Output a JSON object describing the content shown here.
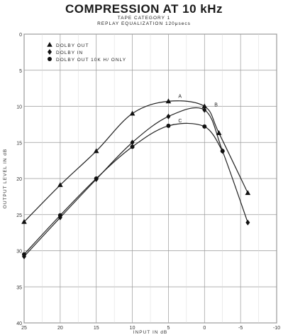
{
  "chart_data": {
    "type": "line",
    "title": "COMPRESSION AT 10 kHz",
    "subtitle": [
      "TAPE CATEGORY 1",
      "REPLAY EQUALIZATION 120μsecs"
    ],
    "xlabel": "INPUT IN dB",
    "ylabel": "OUTPUT LEVEL IN dB",
    "x_ticks": [
      "25",
      "20",
      "15",
      "10",
      "5",
      "0",
      "-5",
      "-10"
    ],
    "y_ticks": [
      "0",
      "5",
      "10",
      "15",
      "20",
      "25",
      "30",
      "35",
      "40"
    ],
    "xlim": [
      25,
      -10
    ],
    "ylim": [
      0,
      40
    ],
    "y_inverted": true,
    "grid": true,
    "legend_position": "top-left",
    "series": [
      {
        "name": "DOLBY OUT",
        "curve_label": "A",
        "marker": "triangle",
        "x": [
          25,
          20,
          15,
          10,
          5,
          0,
          -2,
          -6
        ],
        "y": [
          26,
          20.9,
          16.2,
          11,
          9.3,
          10,
          13.7,
          22
        ]
      },
      {
        "name": "DOLBY IN",
        "curve_label": "B",
        "marker": "diamond",
        "x": [
          25,
          20,
          15,
          10,
          5,
          0,
          -2.5,
          -6
        ],
        "y": [
          30.8,
          25.4,
          20.1,
          15,
          11.4,
          10.5,
          16.2,
          26.1
        ]
      },
      {
        "name": "DOLBY OUT 10K H/ ONLY",
        "curve_label": "C",
        "marker": "circle",
        "x": [
          25,
          20,
          15,
          10,
          5,
          0,
          -2.5
        ],
        "y": [
          30.5,
          25.1,
          20,
          15.6,
          12.7,
          12.8,
          16.2
        ]
      }
    ]
  }
}
